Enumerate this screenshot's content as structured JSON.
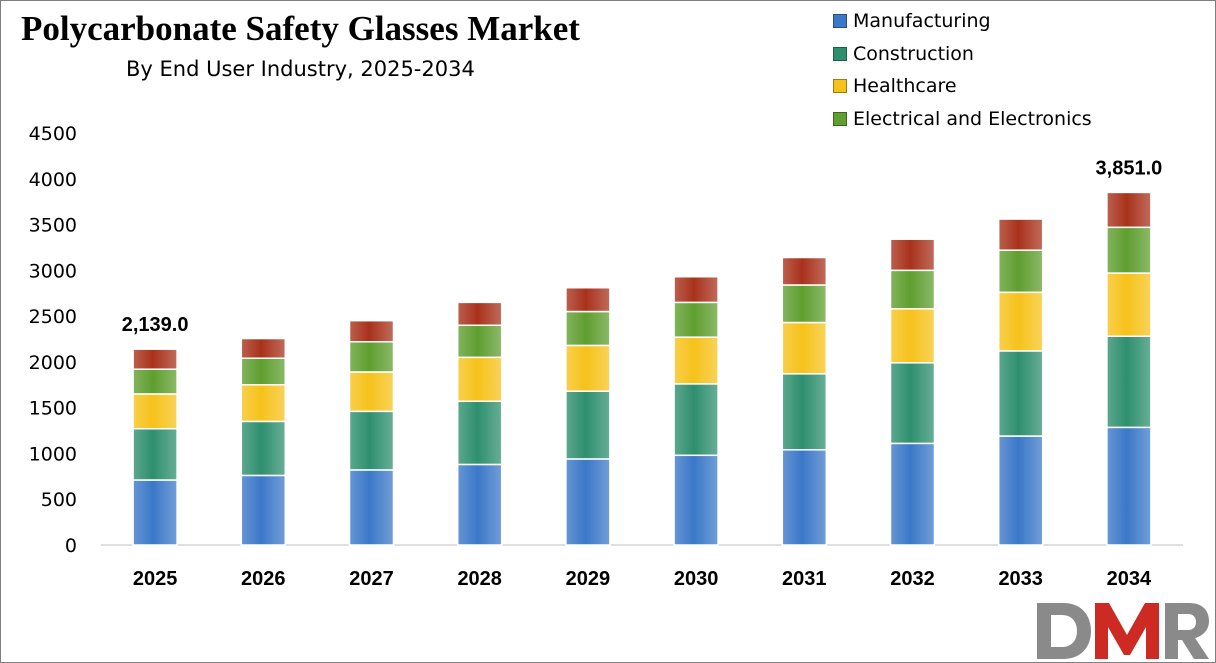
{
  "colors": {
    "manufacturing": "#3b78c8",
    "construction": "#2e8f6e",
    "healthcare": "#f6c21a",
    "electrical": "#5f9e2f",
    "top": "#a8321c",
    "logo_gray": "#8a8a8a",
    "logo_red": "#cc2a22"
  },
  "chart_data": {
    "type": "bar",
    "stacked": true,
    "title": "Polycarbonate Safety Glasses Market",
    "subtitle": "By End User Industry, 2025-2034",
    "categories": [
      "2025",
      "2026",
      "2027",
      "2028",
      "2029",
      "2030",
      "2031",
      "2032",
      "2033",
      "2034"
    ],
    "series": [
      {
        "name": "Manufacturing",
        "color_key": "manufacturing",
        "values": [
          710,
          760,
          820,
          880,
          940,
          980,
          1040,
          1110,
          1190,
          1285
        ]
      },
      {
        "name": "Construction",
        "color_key": "construction",
        "values": [
          560,
          590,
          640,
          690,
          740,
          780,
          830,
          880,
          930,
          995
        ]
      },
      {
        "name": "Healthcare",
        "color_key": "healthcare",
        "values": [
          380,
          400,
          430,
          480,
          500,
          510,
          560,
          590,
          640,
          690
        ]
      },
      {
        "name": "Electrical and Electronics",
        "color_key": "electrical",
        "values": [
          270,
          290,
          330,
          350,
          370,
          380,
          410,
          420,
          460,
          500
        ]
      },
      {
        "name": "",
        "color_key": "top",
        "values": [
          219,
          215,
          230,
          250,
          260,
          280,
          300,
          340,
          340,
          381
        ]
      }
    ],
    "totals": {
      "2025": "2,139.0",
      "2034": "3,851.0"
    },
    "ylim": [
      0,
      4500
    ],
    "yticks": [
      0,
      500,
      1000,
      1500,
      2000,
      2500,
      3000,
      3500,
      4000,
      4500
    ],
    "grid": false,
    "legend_position": "top-right"
  },
  "logo": {
    "text": "DMR"
  }
}
